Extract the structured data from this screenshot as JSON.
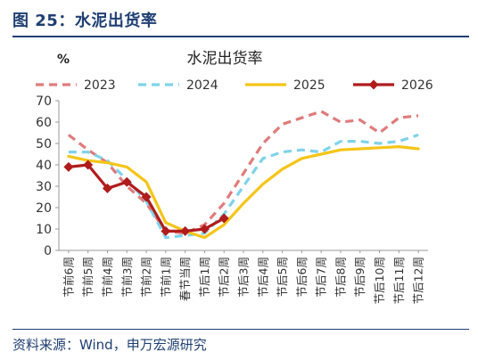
{
  "figure": {
    "title": "图 25：水泥出货率",
    "source": "资料来源：Wind，申万宏源研究"
  },
  "chart_data": {
    "type": "line",
    "title": "水泥出货率",
    "ylabel": "%",
    "ylim": [
      0,
      70
    ],
    "yticks": [
      0,
      10,
      20,
      30,
      40,
      50,
      60,
      70
    ],
    "grid": false,
    "legend_position": "top",
    "categories": [
      "节前6周",
      "节前5周",
      "节前4周",
      "节前3周",
      "节前2周",
      "节前1周",
      "春节当周",
      "节后1周",
      "节后2周",
      "节后3周",
      "节后4周",
      "节后5周",
      "节后6周",
      "节后7周",
      "节后8周",
      "节后9周",
      "节后10周",
      "节后11周",
      "节后12周"
    ],
    "series": [
      {
        "name": "2023",
        "color": "#e07b7b",
        "style": "dashed",
        "values": [
          54,
          47,
          41,
          30,
          22,
          9,
          8,
          12,
          22,
          36,
          50,
          59,
          62,
          65,
          60,
          61,
          55,
          62,
          63
        ]
      },
      {
        "name": "2024",
        "color": "#7fd3ea",
        "style": "dashed",
        "values": [
          46,
          46,
          42,
          33,
          23,
          6,
          7,
          8,
          17,
          30,
          43,
          46,
          47,
          46,
          51,
          51,
          50,
          51,
          54
        ]
      },
      {
        "name": "2025",
        "color": "#f5c518",
        "style": "solid",
        "values": [
          44,
          42,
          41,
          39,
          32,
          13,
          9,
          6,
          12,
          22,
          31,
          38,
          43,
          45,
          47,
          47.5,
          48,
          48.5,
          47.5
        ]
      },
      {
        "name": "2026",
        "color": "#b01c1c",
        "style": "solid-marker",
        "values": [
          39,
          40,
          29,
          32,
          25,
          9,
          9,
          10,
          15,
          null,
          null,
          null,
          null,
          null,
          null,
          null,
          null,
          null,
          null
        ]
      }
    ]
  }
}
